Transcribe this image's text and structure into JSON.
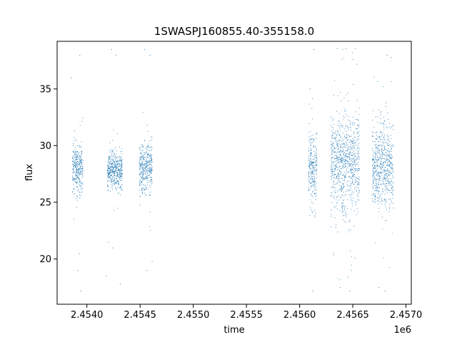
{
  "chart_data": {
    "type": "scatter",
    "title": "1SWASPJ160855.40-355158.0",
    "xlabel": "time",
    "ylabel": "flux",
    "x_offset_label": "1e6",
    "xlim": [
      2453720,
      2457050
    ],
    "ylim": [
      16.0,
      39.2
    ],
    "x_ticks": [
      2454000,
      2454500,
      2455000,
      2455500,
      2456000,
      2456500,
      2457000
    ],
    "x_tick_labels": [
      "2.4540",
      "2.4545",
      "2.4550",
      "2.4555",
      "2.4560",
      "2.4565",
      "2.4570"
    ],
    "y_ticks": [
      20,
      25,
      30,
      35
    ],
    "y_tick_labels": [
      "20",
      "25",
      "30",
      "35"
    ],
    "grid": false,
    "marker_color": "#1f77b4",
    "series": [
      {
        "clusters": [
          {
            "x_range": [
              2453860,
              2453960
            ],
            "y_center": 28.0,
            "y_spread": 2.2,
            "outliers": [
              [
                2453850,
                36.0
              ],
              [
                2453930,
                38.0
              ],
              [
                2453910,
                19.0
              ],
              [
                2453940,
                17.2
              ],
              [
                2453925,
                20.5
              ]
            ]
          },
          {
            "x_range": [
              2454190,
              2454330
            ],
            "y_center": 27.8,
            "y_spread": 1.8,
            "outliers": [
              [
                2454230,
                38.5
              ],
              [
                2454270,
                38.0
              ],
              [
                2454200,
                21.5
              ],
              [
                2454240,
                21.0
              ],
              [
                2454310,
                17.8
              ],
              [
                2454180,
                18.5
              ]
            ]
          },
          {
            "x_range": [
              2454490,
              2454610
            ],
            "y_center": 28.0,
            "y_spread": 2.5,
            "outliers": [
              [
                2454540,
                38.5
              ],
              [
                2454590,
                38.0
              ],
              [
                2454560,
                19.0
              ],
              [
                2454610,
                19.8
              ]
            ]
          },
          {
            "x_range": [
              2456080,
              2456160
            ],
            "y_center": 28.0,
            "y_spread": 3.5,
            "outliers": [
              [
                2456130,
                38.5
              ],
              [
                2456120,
                17.2
              ]
            ]
          },
          {
            "x_range": [
              2456290,
              2456560
            ],
            "y_center": 28.5,
            "y_spread": 4.8,
            "outliers": [
              [
                2456350,
                38.6
              ],
              [
                2456430,
                38.6
              ],
              [
                2456380,
                17.5
              ],
              [
                2456470,
                17.2
              ]
            ]
          },
          {
            "x_range": [
              2456680,
              2456880
            ],
            "y_center": 28.0,
            "y_spread": 4.2,
            "outliers": [
              [
                2456820,
                38.0
              ],
              [
                2456860,
                37.8
              ],
              [
                2456740,
                17.5
              ],
              [
                2456800,
                17.2
              ]
            ]
          }
        ]
      }
    ]
  }
}
